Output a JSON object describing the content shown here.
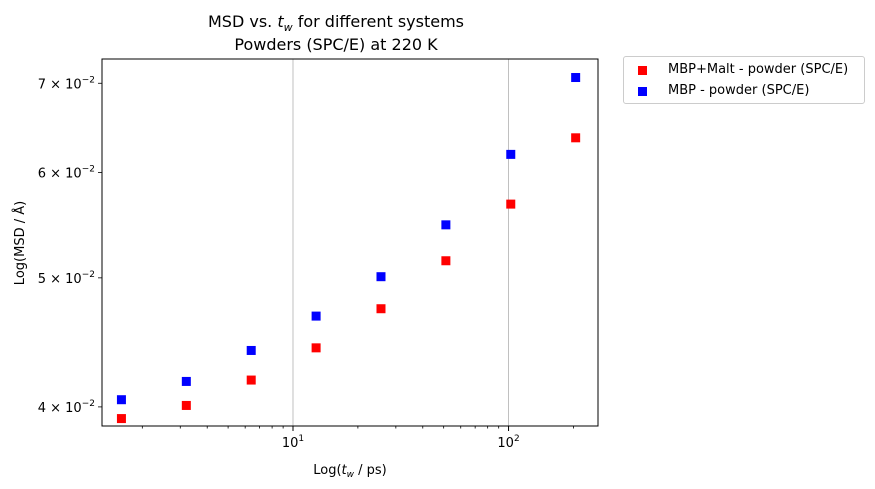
{
  "chart_data": {
    "type": "scatter",
    "title": "MSD vs. t_w for different systems",
    "title_parts": {
      "prefix": "MSD vs. ",
      "var": "t",
      "sub": "w",
      "suffix": " for different systems"
    },
    "subtitle": "Powders (SPC/E) at 220 K",
    "xlabel": "Log(t_w / ps)",
    "xlabel_parts": {
      "prefix": "Log(",
      "var": "t",
      "sub": "w",
      "suffix": " / ps)"
    },
    "ylabel": "Log(MSD / Å)",
    "xscale": "log",
    "yscale": "log",
    "xlim": [
      1.3,
      260
    ],
    "ylim": [
      0.0387,
      0.073
    ],
    "grid": "x-major",
    "legend_position": "outside-top-right",
    "x_ticks": [
      {
        "value": 10,
        "base": "10",
        "exp": "1"
      },
      {
        "value": 100,
        "base": "10",
        "exp": "2"
      }
    ],
    "y_ticks": [
      {
        "value": 0.04,
        "mant": "4",
        "base": "10",
        "exp": "−2"
      },
      {
        "value": 0.05,
        "mant": "5",
        "base": "10",
        "exp": "−2"
      },
      {
        "value": 0.06,
        "mant": "6",
        "base": "10",
        "exp": "−2"
      },
      {
        "value": 0.07,
        "mant": "7",
        "base": "10",
        "exp": "−2"
      }
    ],
    "series": [
      {
        "name": "MBP+Malt - powder (SPC/E)",
        "color": "#ff0000",
        "marker": "square",
        "x": [
          1.6,
          3.2,
          6.4,
          12.8,
          25.6,
          51.2,
          102.4,
          204.8
        ],
        "y": [
          0.0392,
          0.0401,
          0.0419,
          0.0443,
          0.0474,
          0.0515,
          0.0568,
          0.0637
        ]
      },
      {
        "name": "MBP - powder (SPC/E)",
        "color": "#0000ff",
        "marker": "square",
        "x": [
          1.6,
          3.2,
          6.4,
          12.8,
          25.6,
          51.2,
          102.4,
          204.8
        ],
        "y": [
          0.0405,
          0.0418,
          0.0441,
          0.0468,
          0.0501,
          0.0548,
          0.0619,
          0.0707
        ]
      }
    ]
  }
}
